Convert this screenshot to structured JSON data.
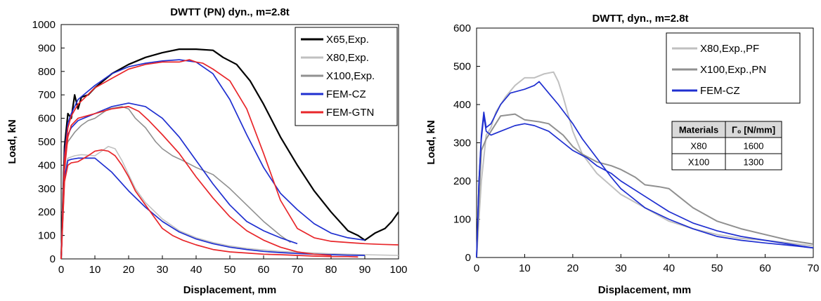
{
  "chart_data": [
    {
      "type": "line",
      "title": "DWTT (PN) dyn., m=2.8t",
      "xlabel": "Displacement, mm",
      "ylabel": "Load, kN",
      "xlim": [
        0,
        100
      ],
      "ylim": [
        0,
        1000
      ],
      "xticks": [
        0,
        10,
        20,
        30,
        40,
        50,
        60,
        70,
        80,
        90,
        100
      ],
      "yticks": [
        0,
        100,
        200,
        300,
        400,
        500,
        600,
        700,
        800,
        900,
        1000
      ],
      "grid": false,
      "legend_position": "top-right",
      "legend": [
        {
          "label": "X65,Exp.",
          "color": "#000000"
        },
        {
          "label": "X80,Exp.",
          "color": "#c0c0c0"
        },
        {
          "label": "X100,Exp.",
          "color": "#909090"
        },
        {
          "label": "FEM-CZ",
          "color": "#1f2fd0"
        },
        {
          "label": "FEM-GTN",
          "color": "#e8262a"
        }
      ],
      "series": [
        {
          "color": "#000000",
          "width": 2.2,
          "noise": 0,
          "x": [
            0,
            0.5,
            1,
            2,
            3,
            4,
            5,
            6,
            8,
            10,
            15,
            20,
            25,
            30,
            35,
            40,
            45,
            48,
            52,
            56,
            60,
            65,
            70,
            75,
            80,
            85,
            88,
            90,
            93,
            96,
            98,
            100
          ],
          "y": [
            0,
            250,
            480,
            620,
            600,
            700,
            640,
            690,
            700,
            730,
            790,
            830,
            860,
            880,
            895,
            895,
            890,
            860,
            830,
            760,
            660,
            520,
            400,
            290,
            200,
            120,
            100,
            80,
            110,
            130,
            160,
            200
          ]
        },
        {
          "color": "#c0c0c0",
          "width": 1.6,
          "noise": 0,
          "x": [
            0,
            0.5,
            1,
            2,
            4,
            6,
            10,
            12,
            14,
            16,
            18,
            20,
            22,
            25,
            30,
            35,
            40,
            45,
            50,
            55,
            60,
            65,
            70,
            75,
            80,
            90,
            100
          ],
          "y": [
            0,
            200,
            380,
            430,
            440,
            445,
            440,
            460,
            480,
            470,
            420,
            360,
            300,
            240,
            170,
            120,
            90,
            70,
            55,
            45,
            38,
            32,
            28,
            25,
            22,
            18,
            15
          ]
        },
        {
          "color": "#909090",
          "width": 1.6,
          "noise": 0,
          "x": [
            0,
            0.5,
            1,
            2,
            4,
            6,
            8,
            10,
            14,
            18,
            20,
            22,
            25,
            28,
            30,
            33,
            36,
            40,
            45,
            50,
            55,
            60,
            65,
            68
          ],
          "y": [
            0,
            250,
            450,
            500,
            540,
            570,
            590,
            600,
            640,
            650,
            640,
            600,
            560,
            500,
            470,
            440,
            420,
            390,
            360,
            300,
            230,
            160,
            100,
            70
          ]
        },
        {
          "color": "#1f2fd0",
          "width": 1.7,
          "noise": 0,
          "x": [
            0,
            1,
            2,
            3,
            5,
            10,
            15,
            20,
            25,
            30,
            35,
            40,
            45,
            50,
            55,
            60,
            65,
            70,
            75,
            80,
            85,
            90
          ],
          "y": [
            0,
            350,
            420,
            425,
            430,
            430,
            370,
            290,
            220,
            160,
            115,
            85,
            65,
            50,
            40,
            32,
            27,
            23,
            20,
            18,
            16,
            15
          ]
        },
        {
          "color": "#1f2fd0",
          "width": 1.7,
          "noise": 0,
          "x": [
            0,
            1,
            2,
            3,
            5,
            10,
            15,
            20,
            25,
            30,
            35,
            40,
            45,
            50,
            55,
            60,
            65,
            70
          ],
          "y": [
            0,
            400,
            530,
            560,
            590,
            620,
            650,
            665,
            650,
            600,
            520,
            420,
            320,
            230,
            160,
            120,
            90,
            65
          ]
        },
        {
          "color": "#1f2fd0",
          "width": 1.7,
          "noise": 0,
          "x": [
            0,
            1,
            2,
            3,
            5,
            10,
            15,
            20,
            25,
            30,
            35,
            40,
            45,
            50,
            55,
            60,
            65,
            70,
            75,
            80,
            85,
            90
          ],
          "y": [
            0,
            450,
            580,
            620,
            680,
            740,
            790,
            820,
            835,
            845,
            850,
            840,
            790,
            680,
            530,
            390,
            280,
            210,
            150,
            110,
            90,
            80
          ]
        },
        {
          "color": "#e8262a",
          "width": 1.7,
          "noise": 0,
          "x": [
            0,
            1,
            2,
            3,
            5,
            8,
            10,
            12,
            14,
            16,
            18,
            20,
            22,
            25,
            28,
            30,
            33,
            36,
            40,
            45,
            50,
            55,
            60,
            65,
            70,
            75,
            80,
            85,
            88
          ],
          "y": [
            0,
            330,
            400,
            410,
            415,
            440,
            460,
            465,
            460,
            440,
            400,
            350,
            290,
            230,
            170,
            130,
            100,
            80,
            60,
            40,
            30,
            25,
            20,
            18,
            15,
            12,
            10,
            10,
            8
          ]
        },
        {
          "color": "#e8262a",
          "width": 1.7,
          "noise": 0,
          "x": [
            0,
            1,
            2,
            3,
            5,
            10,
            15,
            20,
            23,
            26,
            30,
            35,
            40,
            45,
            50,
            55,
            60,
            65,
            70,
            75,
            80
          ],
          "y": [
            0,
            380,
            520,
            570,
            600,
            620,
            640,
            650,
            630,
            590,
            530,
            450,
            350,
            260,
            180,
            120,
            80,
            50,
            30,
            20,
            15
          ]
        },
        {
          "color": "#e8262a",
          "width": 1.7,
          "noise": 0,
          "x": [
            0,
            1,
            2,
            3,
            5,
            10,
            15,
            20,
            25,
            30,
            35,
            38,
            40,
            42,
            45,
            50,
            55,
            60,
            65,
            70,
            75,
            80,
            85,
            90,
            95,
            100
          ],
          "y": [
            0,
            430,
            560,
            610,
            660,
            730,
            770,
            810,
            830,
            840,
            840,
            850,
            840,
            835,
            810,
            760,
            640,
            450,
            250,
            130,
            90,
            75,
            70,
            65,
            62,
            60
          ]
        }
      ]
    },
    {
      "type": "line",
      "title": "DWTT, dyn., m=2.8t",
      "xlabel": "Displacement, mm",
      "ylabel": "Load, kN",
      "xlim": [
        0,
        70
      ],
      "ylim": [
        0,
        600
      ],
      "xticks": [
        0,
        10,
        20,
        30,
        40,
        50,
        60,
        70
      ],
      "yticks": [
        0,
        100,
        200,
        300,
        400,
        500,
        600
      ],
      "grid": false,
      "legend_position": "top-right",
      "legend": [
        {
          "label": "X80,Exp.,PF",
          "color": "#c0c0c0"
        },
        {
          "label": "X100,Exp.,PN",
          "color": "#909090"
        },
        {
          "label": "FEM-CZ",
          "color": "#1f2fd0"
        }
      ],
      "table": {
        "headers": [
          "Materials",
          "Γ₀ [N/mm]"
        ],
        "rows": [
          [
            "X80",
            "1600"
          ],
          [
            "X100",
            "1300"
          ]
        ]
      },
      "series": [
        {
          "color": "#c0c0c0",
          "width": 2.0,
          "noise": 0,
          "x": [
            0,
            0.5,
            1,
            2,
            3,
            4,
            6,
            8,
            10,
            12,
            14,
            16,
            17,
            18,
            20,
            22,
            25,
            30,
            35,
            40,
            45,
            50,
            55,
            60,
            65,
            70
          ],
          "y": [
            0,
            100,
            200,
            320,
            340,
            380,
            420,
            450,
            470,
            470,
            480,
            485,
            460,
            420,
            330,
            270,
            220,
            165,
            130,
            95,
            75,
            60,
            50,
            45,
            38,
            30
          ]
        },
        {
          "color": "#909090",
          "width": 2.0,
          "noise": 0,
          "x": [
            0,
            0.5,
            1,
            2,
            3,
            5,
            8,
            10,
            13,
            15,
            18,
            20,
            22,
            25,
            28,
            30,
            33,
            35,
            38,
            40,
            42,
            45,
            50,
            55,
            60,
            65,
            70
          ],
          "y": [
            0,
            150,
            280,
            310,
            330,
            370,
            375,
            360,
            355,
            350,
            320,
            290,
            270,
            250,
            240,
            230,
            210,
            190,
            185,
            180,
            160,
            130,
            95,
            75,
            60,
            45,
            35
          ]
        },
        {
          "color": "#1f2fd0",
          "width": 1.7,
          "noise": 0,
          "x": [
            0,
            0.5,
            1,
            1.5,
            2,
            3,
            5,
            8,
            10,
            12,
            15,
            18,
            20,
            23,
            25,
            28,
            30,
            35,
            40,
            45,
            50,
            55,
            60,
            65,
            70
          ],
          "y": [
            0,
            200,
            310,
            370,
            330,
            320,
            330,
            345,
            350,
            345,
            330,
            300,
            280,
            260,
            240,
            220,
            200,
            160,
            120,
            90,
            70,
            55,
            45,
            35,
            25
          ]
        },
        {
          "color": "#1f2fd0",
          "width": 1.7,
          "noise": 0,
          "x": [
            0,
            0.5,
            1,
            1.5,
            2,
            3,
            5,
            7,
            10,
            12,
            13,
            15,
            17,
            20,
            22,
            25,
            28,
            30,
            35,
            40,
            45,
            50,
            55,
            60,
            65,
            70
          ],
          "y": [
            0,
            200,
            320,
            380,
            340,
            350,
            400,
            430,
            440,
            450,
            460,
            430,
            400,
            350,
            310,
            260,
            210,
            180,
            130,
            100,
            75,
            55,
            45,
            38,
            32,
            25
          ]
        }
      ]
    }
  ]
}
